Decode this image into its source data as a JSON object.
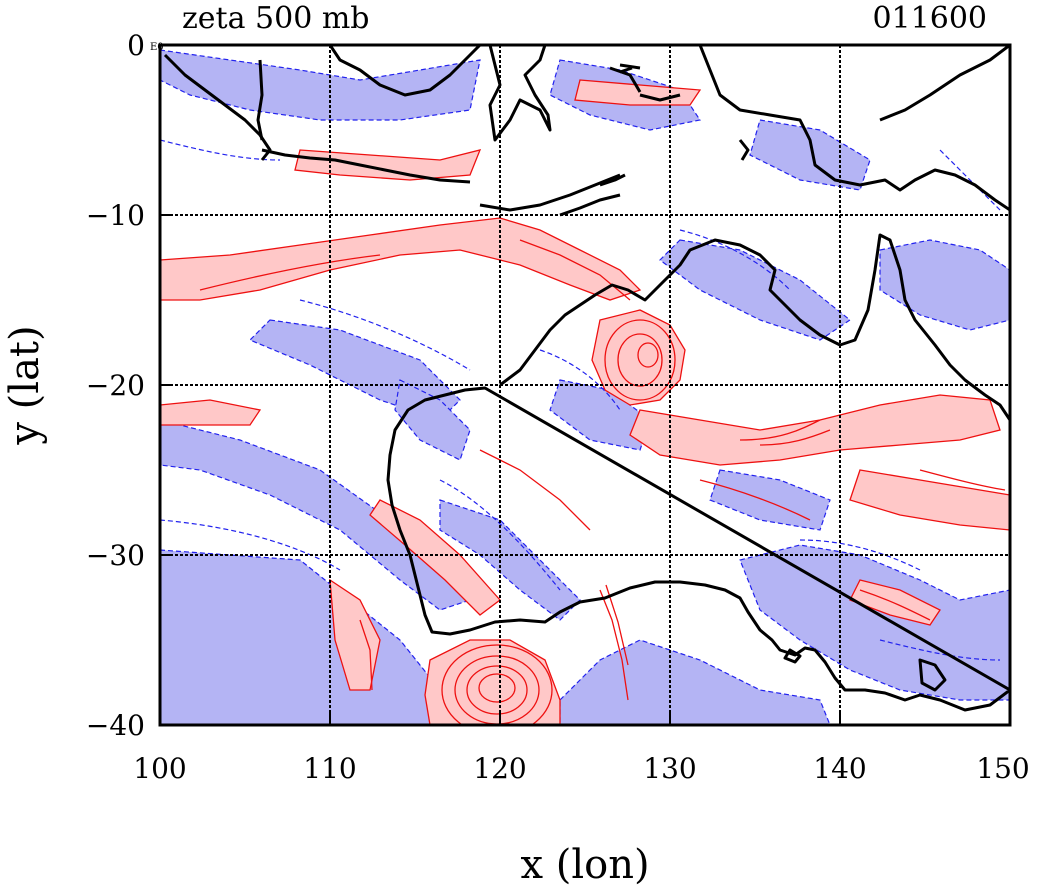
{
  "header": {
    "title": "zeta 500 mb",
    "timestamp": "011600"
  },
  "axes": {
    "xlabel": "x (lon)",
    "ylabel": "y (lat)",
    "xlim": [
      100,
      150
    ],
    "ylim": [
      -40,
      0
    ],
    "xticks": [
      "100",
      "110",
      "120",
      "130",
      "140",
      "150"
    ],
    "yticks": [
      "0",
      "−10",
      "−20",
      "−30",
      "−40"
    ],
    "corner_mark": "E0",
    "grid": true
  },
  "colors": {
    "positive_fill": "#ffc8c8",
    "positive_line": "#ee1111",
    "negative_fill": "#b4b4f4",
    "negative_line": "#2222ee",
    "coastline": "#000000",
    "grid": "#000000"
  }
}
